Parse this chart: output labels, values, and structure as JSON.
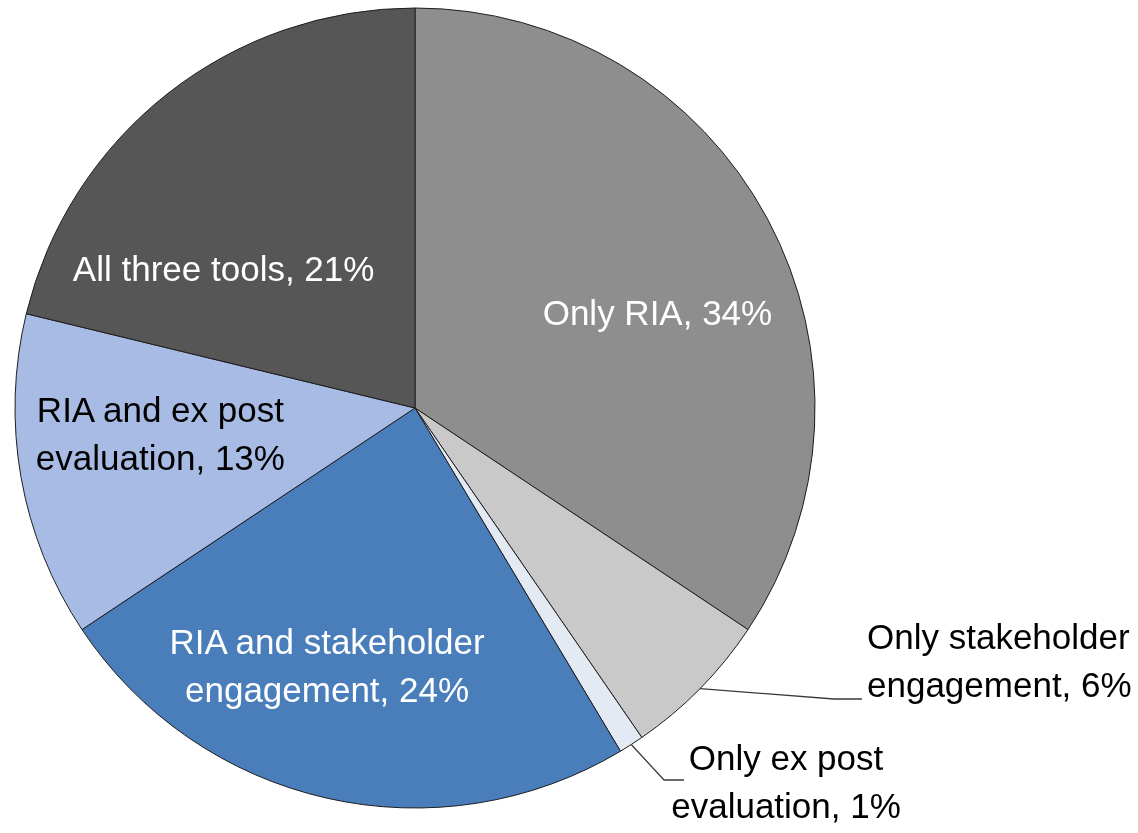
{
  "chart_data": {
    "type": "pie",
    "categories": [
      "Only RIA",
      "Only stakeholder engagement",
      "Only ex post evaluation",
      "RIA and stakeholder engagement",
      "RIA and ex post evaluation",
      "All three tools"
    ],
    "values": [
      34,
      6,
      1,
      24,
      13,
      21
    ],
    "colors": [
      "#8e8e8e",
      "#c9c9c9",
      "#e4eaf4",
      "#4a7ebb",
      "#a8bbe4",
      "#565656"
    ],
    "value_labels": [
      "34%",
      "6%",
      "1%",
      "24%",
      "13%",
      "21%"
    ]
  }
}
